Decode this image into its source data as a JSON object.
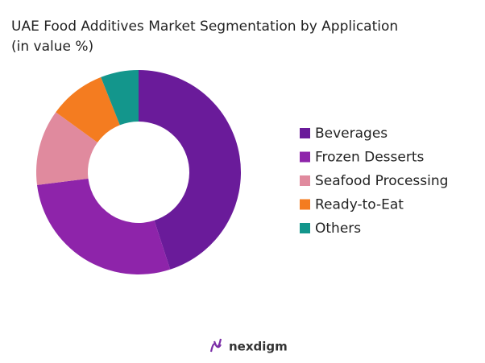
{
  "chart_data": {
    "type": "donut",
    "title": "UAE Food Additives Market Segmentation by Application",
    "subtitle": "(in value %)",
    "categories": [
      "Beverages",
      "Frozen Desserts",
      "Seafood Processing",
      "Ready-to-Eat",
      "Others"
    ],
    "values": [
      45,
      28,
      12,
      9,
      6
    ],
    "colors": [
      "#6a1b9a",
      "#8e24aa",
      "#e08a9e",
      "#f47c20",
      "#13968c"
    ],
    "legend": "right"
  },
  "brand": "nexdigm"
}
